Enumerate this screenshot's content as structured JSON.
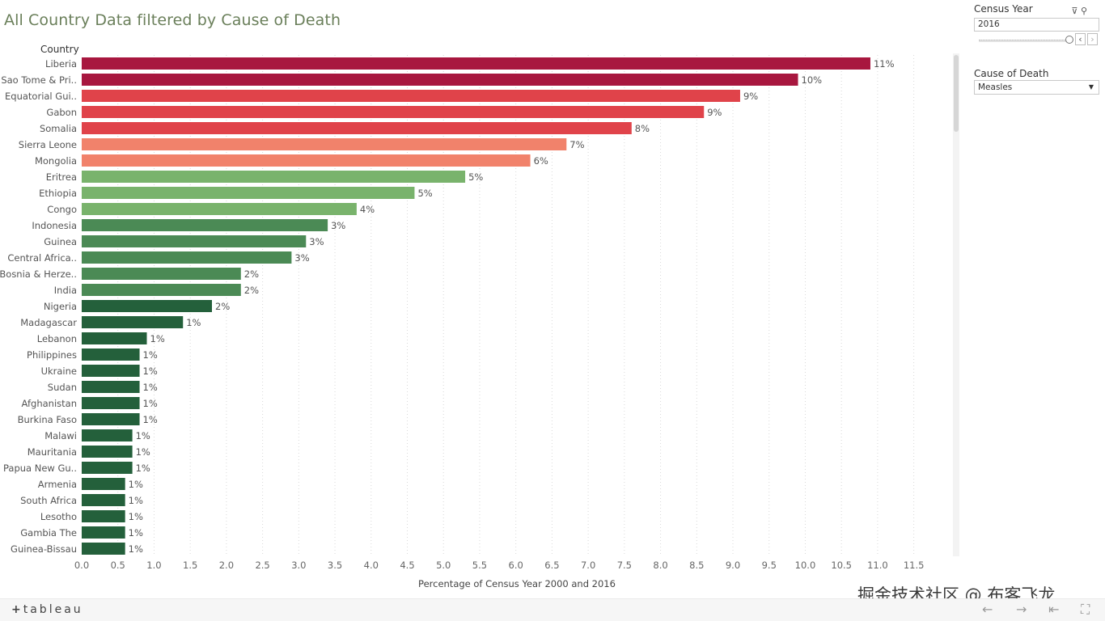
{
  "title": "All Country Data filtered by Cause of Death",
  "column_header": "Country",
  "filters": {
    "census_year_label": "Census Year",
    "census_year_value": "2016",
    "cause_label": "Cause of Death",
    "cause_value": "Measles"
  },
  "footer": {
    "logo_text": "tableau",
    "watermark": "掘金技术社区 @ 布客飞龙"
  },
  "colors": {
    "dark_red": "#a8173f",
    "red": "#e0434a",
    "salmon": "#f1826b",
    "light_green": "#79b36c",
    "mid_green": "#4b8a55",
    "dark_green": "#24603b"
  },
  "chart_data": {
    "type": "bar",
    "orientation": "horizontal",
    "categories": [
      "Liberia",
      "Sao Tome & Pri..",
      "Equatorial Gui..",
      "Gabon",
      "Somalia",
      "Sierra Leone",
      "Mongolia",
      "Eritrea",
      "Ethiopia",
      "Congo",
      "Indonesia",
      "Guinea",
      "Central Africa..",
      "Bosnia & Herze..",
      "India",
      "Nigeria",
      "Madagascar",
      "Lebanon",
      "Philippines",
      "Ukraine",
      "Sudan",
      "Afghanistan",
      "Burkina Faso",
      "Malawi",
      "Mauritania",
      "Papua New Gu..",
      "Armenia",
      "South Africa",
      "Lesotho",
      "Gambia The",
      "Guinea-Bissau"
    ],
    "values": [
      10.9,
      9.9,
      9.1,
      8.6,
      7.6,
      6.7,
      6.2,
      5.3,
      4.6,
      3.8,
      3.4,
      3.1,
      2.9,
      2.2,
      2.2,
      1.8,
      1.4,
      0.9,
      0.8,
      0.8,
      0.8,
      0.8,
      0.8,
      0.7,
      0.7,
      0.7,
      0.6,
      0.6,
      0.6,
      0.6,
      0.6
    ],
    "value_labels": [
      "11%",
      "10%",
      "9%",
      "9%",
      "8%",
      "7%",
      "6%",
      "5%",
      "5%",
      "4%",
      "3%",
      "3%",
      "3%",
      "2%",
      "2%",
      "2%",
      "1%",
      "1%",
      "1%",
      "1%",
      "1%",
      "1%",
      "1%",
      "1%",
      "1%",
      "1%",
      "1%",
      "1%",
      "1%",
      "1%",
      "1%"
    ],
    "color_keys": [
      "dark_red",
      "dark_red",
      "red",
      "red",
      "red",
      "salmon",
      "salmon",
      "light_green",
      "light_green",
      "light_green",
      "mid_green",
      "mid_green",
      "mid_green",
      "mid_green",
      "mid_green",
      "dark_green",
      "dark_green",
      "dark_green",
      "dark_green",
      "dark_green",
      "dark_green",
      "dark_green",
      "dark_green",
      "dark_green",
      "dark_green",
      "dark_green",
      "dark_green",
      "dark_green",
      "dark_green",
      "dark_green",
      "dark_green"
    ],
    "x_ticks": [
      "0.0",
      "0.5",
      "1.0",
      "1.5",
      "2.0",
      "2.5",
      "3.0",
      "3.5",
      "4.0",
      "4.5",
      "5.0",
      "5.5",
      "6.0",
      "6.5",
      "7.0",
      "7.5",
      "8.0",
      "8.5",
      "9.0",
      "9.5",
      "10.0",
      "10.5",
      "11.0",
      "11.5"
    ],
    "xlabel": "Percentage of Census Year 2000 and  2016",
    "ylabel": "Country",
    "xlim": [
      0,
      11.75
    ],
    "grid": true
  }
}
